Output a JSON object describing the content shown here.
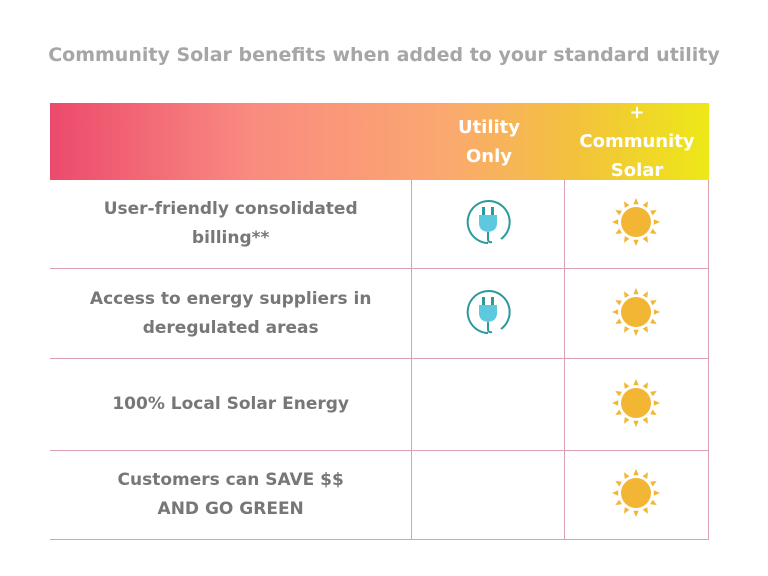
{
  "title": "Community Solar benefits when added to your standard utility",
  "header": {
    "col_utility": "Utility Only",
    "col_solar": "+ Community Solar"
  },
  "colors": {
    "plug": "#5ec8df",
    "plug_ring": "#2a9a9a",
    "sun": "#f2b634",
    "border": "#d9a0b4"
  },
  "rows": [
    {
      "label": "User-friendly consolidated billing**",
      "utility": "plug-icon",
      "solar": "sun-icon"
    },
    {
      "label": "Access to energy suppliers in deregulated areas",
      "utility": "plug-icon",
      "solar": "sun-icon"
    },
    {
      "label": "100% Local Solar Energy",
      "utility": null,
      "solar": "sun-icon"
    },
    {
      "label": "Customers can SAVE $$ AND GO GREEN",
      "utility": null,
      "solar": "sun-icon"
    }
  ]
}
